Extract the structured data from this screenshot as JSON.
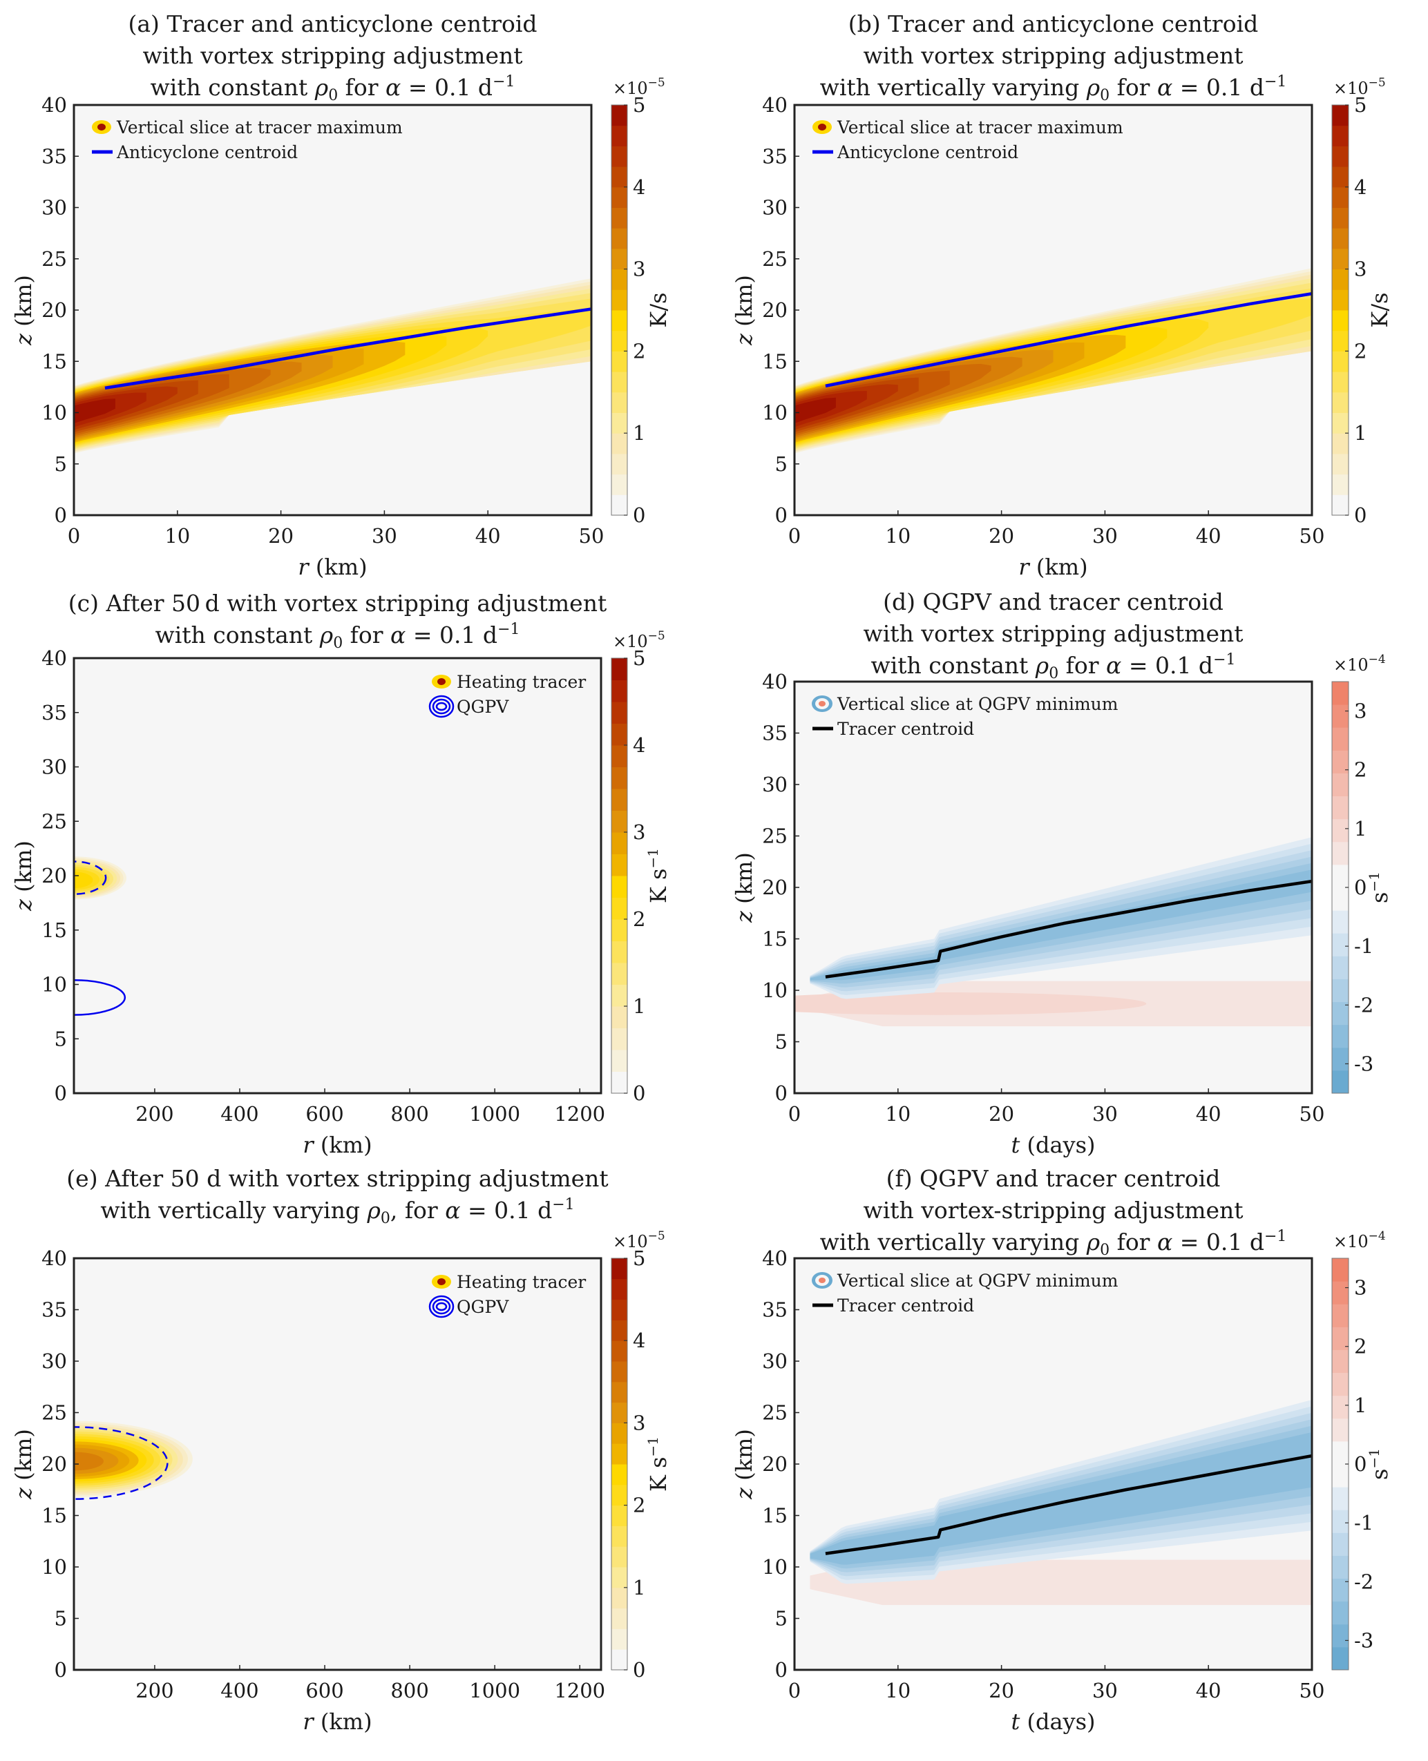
{
  "colors": {
    "plot_background": "#f6f6f6",
    "centroid_blue": "#0000ee",
    "centroid_black": "#000000",
    "heat_scale": [
      "#f6f6f6",
      "#f7f1dc",
      "#f8ecc7",
      "#f9e7b2",
      "#faea99",
      "#fbe57a",
      "#fce25c",
      "#fddf3a",
      "#fedb1a",
      "#fed800",
      "#f0b400",
      "#e8a300",
      "#e0920a",
      "#d87f08",
      "#d06c06",
      "#c85a04",
      "#bf4802",
      "#b83502",
      "#b02402",
      "#a01200"
    ],
    "pv_scale": [
      "#6aaad0",
      "#7bb3d6",
      "#8cbddc",
      "#9dc6e1",
      "#aecfe6",
      "#bfd8eb",
      "#d0e2f0",
      "#e1ebf4",
      "#f6f6f6",
      "#f6f6f6",
      "#f5e4e0",
      "#f5d7d0",
      "#f4c9bf",
      "#f3bbae",
      "#f2ad9d",
      "#f19f8c",
      "#f0917b",
      "#ef836a"
    ]
  },
  "chart_data": [
    {
      "id": "a",
      "type": "heatmap",
      "title": [
        "(a) Tracer and anticyclone centroid",
        "with vortex stripping adjustment",
        "with constant ρ₀ for α = 0.1 d⁻¹"
      ],
      "title_parts": {
        "l1": "(a) Tracer and anticyclone centroid",
        "l2": "with vortex stripping adjustment",
        "l3a": "with constant ",
        "rho": "ρ",
        "sub0": "0",
        "l3b": " for ",
        "alpha": "α",
        "l3c": " = 0.1 d",
        "sup": "−1"
      },
      "xlabel": {
        "var": "r",
        "unit": " (km)"
      },
      "ylabel": {
        "var": "z",
        "unit": " (km)"
      },
      "xlim": [
        0,
        50
      ],
      "ylim": [
        0,
        40
      ],
      "xticks": [
        "0",
        "10",
        "20",
        "30",
        "40",
        "50"
      ],
      "xtick_values": [
        0,
        10,
        20,
        30,
        40,
        50
      ],
      "yticks": [
        "0",
        "5",
        "10",
        "15",
        "20",
        "25",
        "30",
        "35",
        "40"
      ],
      "ytick_values": [
        0,
        5,
        10,
        15,
        20,
        25,
        30,
        35,
        40
      ],
      "colorbar": {
        "ticks": [
          "0",
          "1",
          "2",
          "3",
          "4",
          "5"
        ],
        "tick_values": [
          0,
          1,
          2,
          3,
          4,
          5
        ],
        "range": [
          0,
          5
        ],
        "multiplier": "×10",
        "exponent": "−5",
        "label": "K/s",
        "label_sup": "",
        "scale": "heat"
      },
      "legend": [
        {
          "marker": "filled-contour-icon",
          "label": "Vertical slice at tracer maximum"
        },
        {
          "marker": "blue-line-icon",
          "label": "Anticyclone centroid"
        }
      ],
      "legend_position": "top-left",
      "centroid": {
        "x": [
          3,
          8,
          14,
          20,
          26,
          32,
          38,
          44,
          50
        ],
        "y": [
          12.4,
          13.2,
          14.1,
          15.2,
          16.3,
          17.3,
          18.3,
          19.2,
          20.1
        ],
        "color": "blue"
      },
      "field": {
        "kind": "tilted-band",
        "x_break": 14,
        "z_at_0": 10,
        "z_at_50": 19.5,
        "peak": 5,
        "cut_below_break": true
      }
    },
    {
      "id": "b",
      "type": "heatmap",
      "title": [
        "(b) Tracer and anticyclone centroid",
        "with vortex stripping adjustment",
        "with vertically varying ρ₀ for α = 0.1 d⁻¹"
      ],
      "title_parts": {
        "l1": "(b) Tracer and anticyclone centroid",
        "l2": "with vortex stripping adjustment",
        "l3a": "with vertically varying ",
        "rho": "ρ",
        "sub0": "0",
        "l3b": " for ",
        "alpha": "α",
        "l3c": " = 0.1 d",
        "sup": "−1"
      },
      "xlabel": {
        "var": "r",
        "unit": " (km)"
      },
      "ylabel": {
        "var": "z",
        "unit": " (km)"
      },
      "xlim": [
        0,
        50
      ],
      "ylim": [
        0,
        40
      ],
      "xticks": [
        "0",
        "10",
        "20",
        "30",
        "40",
        "50"
      ],
      "xtick_values": [
        0,
        10,
        20,
        30,
        40,
        50
      ],
      "yticks": [
        "0",
        "5",
        "10",
        "15",
        "20",
        "25",
        "30",
        "35",
        "40"
      ],
      "ytick_values": [
        0,
        5,
        10,
        15,
        20,
        25,
        30,
        35,
        40
      ],
      "colorbar": {
        "ticks": [
          "0",
          "1",
          "2",
          "3",
          "4",
          "5"
        ],
        "tick_values": [
          0,
          1,
          2,
          3,
          4,
          5
        ],
        "range": [
          0,
          5
        ],
        "multiplier": "×10",
        "exponent": "−5",
        "label": "K/s",
        "label_sup": "",
        "scale": "heat"
      },
      "legend": [
        {
          "marker": "filled-contour-icon",
          "label": "Vertical slice at tracer maximum"
        },
        {
          "marker": "blue-line-icon",
          "label": "Anticyclone centroid"
        }
      ],
      "legend_position": "top-left",
      "centroid": {
        "x": [
          3,
          8,
          14,
          20,
          26,
          32,
          38,
          44,
          50
        ],
        "y": [
          12.6,
          13.6,
          14.8,
          16.0,
          17.2,
          18.4,
          19.5,
          20.6,
          21.6
        ],
        "color": "blue"
      },
      "field": {
        "kind": "tilted-band",
        "x_break": 14,
        "z_at_0": 10,
        "z_at_50": 20.5,
        "peak": 5,
        "cut_below_break": true
      }
    },
    {
      "id": "c",
      "type": "heatmap",
      "title": [
        "(c) After 50 d with vortex stripping adjustment",
        "with constant ρ₀ for α = 0.1 d⁻¹"
      ],
      "title_parts": {
        "l1": "(c) After 50 d with vortex stripping adjustment",
        "l3a": "with constant ",
        "rho": "ρ",
        "sub0": "0",
        "l3b": " for ",
        "alpha": "α",
        "l3c": " = 0.1 d",
        "sup": "−1"
      },
      "xlabel": {
        "var": "r",
        "unit": " (km)"
      },
      "ylabel": {
        "var": "z",
        "unit": " (km)"
      },
      "xlim": [
        10,
        1250
      ],
      "ylim": [
        0,
        40
      ],
      "xticks": [
        "200",
        "400",
        "600",
        "800",
        "1000",
        "1200"
      ],
      "xtick_values": [
        200,
        400,
        600,
        800,
        1000,
        1200
      ],
      "yticks": [
        "0",
        "5",
        "10",
        "15",
        "20",
        "25",
        "30",
        "35",
        "40"
      ],
      "ytick_values": [
        0,
        5,
        10,
        15,
        20,
        25,
        30,
        35,
        40
      ],
      "colorbar": {
        "ticks": [
          "0",
          "1",
          "2",
          "3",
          "4",
          "5"
        ],
        "tick_values": [
          0,
          1,
          2,
          3,
          4,
          5
        ],
        "range": [
          0,
          5
        ],
        "multiplier": "×10",
        "exponent": "−5",
        "label": "K s",
        "label_sup": "−1",
        "scale": "heat"
      },
      "legend": [
        {
          "marker": "filled-contour-icon",
          "label": "Heating tracer"
        },
        {
          "marker": "concentric-rings-icon",
          "label": "QGPV"
        }
      ],
      "legend_position": "top-right",
      "tracer_blob": {
        "z_center": 19.8,
        "r_extent": 130,
        "z_halfwidth": 1.8,
        "peak": 2.4
      },
      "qgpv_contours": [
        {
          "style": "dashed",
          "z_center": 19.8,
          "z_half": 1.5,
          "r_extent": 75
        },
        {
          "style": "solid",
          "z_center": 8.8,
          "z_half": 1.6,
          "r_extent": 120
        }
      ]
    },
    {
      "id": "d",
      "type": "heatmap",
      "title": [
        "(d) QGPV and tracer centroid",
        "with vortex stripping adjustment",
        "with constant ρ₀ for α = 0.1 d⁻¹"
      ],
      "title_parts": {
        "l1": "(d) QGPV and tracer centroid",
        "l2": "with vortex stripping adjustment",
        "l3a": "with constant ",
        "rho": "ρ",
        "sub0": "0",
        "l3b": " for ",
        "alpha": "α",
        "l3c": " = 0.1 d",
        "sup": "−1"
      },
      "xlabel": {
        "var": "t",
        "unit": " (days)"
      },
      "ylabel": {
        "var": "z",
        "unit": " (km)"
      },
      "xlim": [
        0,
        50
      ],
      "ylim": [
        0,
        40
      ],
      "xticks": [
        "0",
        "10",
        "20",
        "30",
        "40",
        "50"
      ],
      "xtick_values": [
        0,
        10,
        20,
        30,
        40,
        50
      ],
      "yticks": [
        "0",
        "5",
        "10",
        "15",
        "20",
        "25",
        "30",
        "35",
        "40"
      ],
      "ytick_values": [
        0,
        5,
        10,
        15,
        20,
        25,
        30,
        35,
        40
      ],
      "colorbar": {
        "ticks": [
          "-3",
          "-2",
          "-1",
          "0",
          "1",
          "2",
          "3"
        ],
        "tick_values": [
          -3,
          -2,
          -1,
          0,
          1,
          2,
          3
        ],
        "range": [
          -3.5,
          3.5
        ],
        "multiplier": "×10",
        "exponent": "−4",
        "label": "s",
        "label_sup": "−1",
        "scale": "pv"
      },
      "legend": [
        {
          "marker": "diverging-contour-icon",
          "label": "Vertical slice at QGPV minimum"
        },
        {
          "marker": "black-line-icon",
          "label": "Tracer centroid"
        }
      ],
      "legend_position": "top-left",
      "centroid": {
        "x": [
          3,
          8,
          13.9,
          14.1,
          20,
          26,
          32,
          38,
          44,
          50
        ],
        "y": [
          11.3,
          12.0,
          12.9,
          13.8,
          15.2,
          16.5,
          17.6,
          18.7,
          19.7,
          20.6
        ],
        "color": "black"
      },
      "field": {
        "kind": "pv",
        "neg_depth": 1.2,
        "pos_z": 8.7,
        "pos_level": 0.4
      }
    },
    {
      "id": "e",
      "type": "heatmap",
      "title": [
        "(e) After 50 d with vortex stripping adjustment",
        "with vertically varying ρ₀, for α = 0.1 d⁻¹"
      ],
      "title_parts": {
        "l1": "(e) After 50 d with vortex stripping adjustment",
        "l3a": "with vertically varying ",
        "rho": "ρ",
        "sub0": "0",
        "l3b": ", for ",
        "alpha": "α",
        "l3c": " = 0.1 d",
        "sup": "−1"
      },
      "xlabel": {
        "var": "r",
        "unit": " (km)"
      },
      "ylabel": {
        "var": "z",
        "unit": " (km)"
      },
      "xlim": [
        10,
        1250
      ],
      "ylim": [
        0,
        40
      ],
      "xticks": [
        "200",
        "400",
        "600",
        "800",
        "1000",
        "1200"
      ],
      "xtick_values": [
        200,
        400,
        600,
        800,
        1000,
        1200
      ],
      "yticks": [
        "0",
        "5",
        "10",
        "15",
        "20",
        "25",
        "30",
        "35",
        "40"
      ],
      "ytick_values": [
        0,
        5,
        10,
        15,
        20,
        25,
        30,
        35,
        40
      ],
      "colorbar": {
        "ticks": [
          "0",
          "1",
          "2",
          "3",
          "4",
          "5"
        ],
        "tick_values": [
          0,
          1,
          2,
          3,
          4,
          5
        ],
        "range": [
          0,
          5
        ],
        "multiplier": "×10",
        "exponent": "−5",
        "label": "K s",
        "label_sup": "−1",
        "scale": "heat"
      },
      "legend": [
        {
          "marker": "filled-contour-icon",
          "label": "Heating tracer"
        },
        {
          "marker": "concentric-rings-icon",
          "label": "QGPV"
        }
      ],
      "legend_position": "top-right",
      "tracer_blob": {
        "z_center": 20.5,
        "r_extent": 290,
        "z_halfwidth": 3.6,
        "peak": 3.3
      },
      "qgpv_contours": [
        {
          "style": "dashed",
          "z_center": 20.1,
          "z_half": 3.5,
          "r_extent": 220
        }
      ]
    },
    {
      "id": "f",
      "type": "heatmap",
      "title": [
        "(f) QGPV and tracer centroid",
        "with vortex-stripping adjustment",
        "with vertically varying ρ₀ for α = 0.1 d⁻¹"
      ],
      "title_parts": {
        "l1": "(f) QGPV and tracer centroid",
        "l2": "with vortex-stripping adjustment",
        "l3a": "with vertically varying ",
        "rho": "ρ",
        "sub0": "0",
        "l3b": " for ",
        "alpha": "α",
        "l3c": " = 0.1 d",
        "sup": "−1"
      },
      "xlabel": {
        "var": "t",
        "unit": " (days)"
      },
      "ylabel": {
        "var": "z",
        "unit": " (km)"
      },
      "xlim": [
        0,
        50
      ],
      "ylim": [
        0,
        40
      ],
      "xticks": [
        "0",
        "10",
        "20",
        "30",
        "40",
        "50"
      ],
      "xtick_values": [
        0,
        10,
        20,
        30,
        40,
        50
      ],
      "yticks": [
        "0",
        "5",
        "10",
        "15",
        "20",
        "25",
        "30",
        "35",
        "40"
      ],
      "ytick_values": [
        0,
        5,
        10,
        15,
        20,
        25,
        30,
        35,
        40
      ],
      "colorbar": {
        "ticks": [
          "-3",
          "-2",
          "-1",
          "0",
          "1",
          "2",
          "3"
        ],
        "tick_values": [
          -3,
          -2,
          -1,
          0,
          1,
          2,
          3
        ],
        "range": [
          -3.5,
          3.5
        ],
        "multiplier": "×10",
        "exponent": "−4",
        "label": "s",
        "label_sup": "−1",
        "scale": "pv"
      },
      "legend": [
        {
          "marker": "diverging-contour-icon",
          "label": "Vertical slice at QGPV minimum"
        },
        {
          "marker": "black-line-icon",
          "label": "Tracer centroid"
        }
      ],
      "legend_position": "top-left",
      "centroid": {
        "x": [
          3,
          8,
          13.9,
          14.1,
          20,
          26,
          32,
          38,
          44,
          50
        ],
        "y": [
          11.3,
          12.0,
          12.9,
          13.6,
          15.0,
          16.3,
          17.5,
          18.6,
          19.7,
          20.8
        ],
        "color": "black"
      },
      "field": {
        "kind": "pv",
        "neg_depth": 1.6,
        "pos_z": 8.5,
        "pos_level": 0.25
      }
    }
  ]
}
